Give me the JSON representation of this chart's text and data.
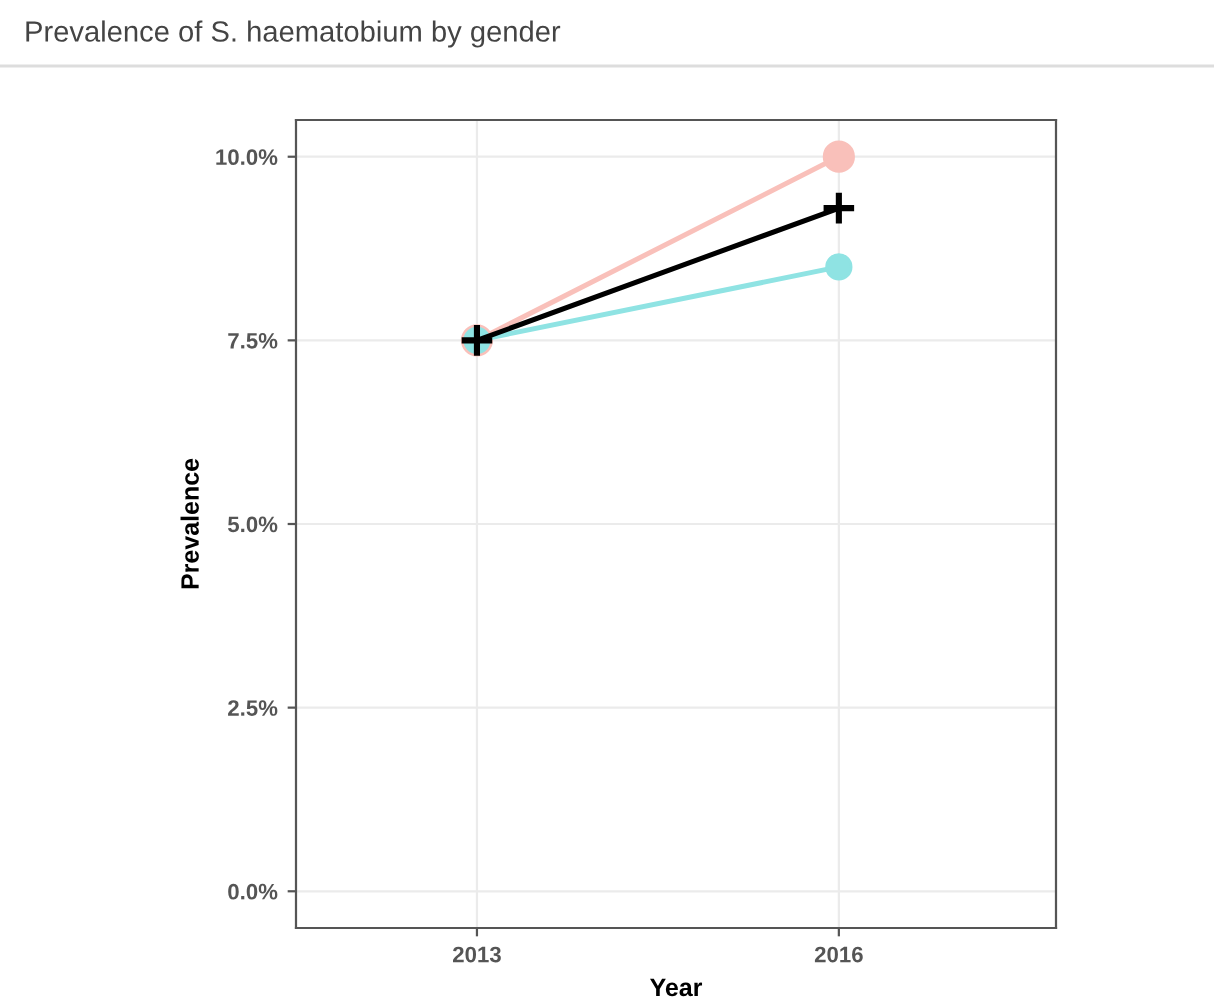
{
  "chart_data": {
    "type": "line",
    "title": "Prevalence of S. haematobium by gender",
    "xlabel": "Year",
    "ylabel": "Prevalence",
    "x": [
      2013,
      2016
    ],
    "series": [
      {
        "color": "#f9c0ba",
        "values": [
          7.5,
          10.0
        ],
        "marker": "circle"
      },
      {
        "color": "#8fe3e3",
        "values": [
          7.5,
          8.5
        ],
        "marker": "circle"
      },
      {
        "color": "#000000",
        "values": [
          7.5,
          9.3
        ],
        "marker": "cross"
      }
    ],
    "xlim": [
      2011.5,
      2017.8
    ],
    "xticks": [
      2013,
      2016
    ],
    "ylim": [
      -0.5,
      10.5
    ],
    "yticks": [
      {
        "value": 0,
        "label": "0.0%"
      },
      {
        "value": 2.5,
        "label": "2.5%"
      },
      {
        "value": 5,
        "label": "5.0%"
      },
      {
        "value": 7.5,
        "label": "7.5%"
      },
      {
        "value": 10,
        "label": "10.0%"
      }
    ],
    "grid": true,
    "line_style": "solid"
  }
}
